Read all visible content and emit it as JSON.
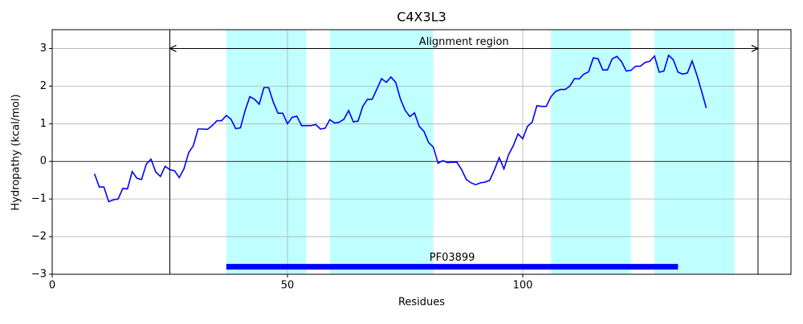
{
  "chart_data": {
    "type": "line",
    "title": "C4X3L3",
    "x_label": "Residues",
    "y_label": "Hydropathy (kcal/mol)",
    "xlim": [
      0,
      157
    ],
    "ylim": [
      -3,
      3.5
    ],
    "xticks": [
      0,
      50,
      100
    ],
    "yticks": [
      {
        "value": -3,
        "label": "−3"
      },
      {
        "value": -2,
        "label": "−2"
      },
      {
        "value": -1,
        "label": "−1"
      },
      0,
      1,
      2,
      3
    ],
    "grid": true,
    "x": [
      9,
      10,
      11,
      12,
      13,
      14,
      15,
      16,
      17,
      18,
      19,
      20,
      21,
      22,
      23,
      24,
      25,
      26,
      27,
      28,
      29,
      30,
      31,
      32,
      33,
      34,
      35,
      36,
      37,
      38,
      39,
      40,
      41,
      42,
      43,
      44,
      45,
      46,
      47,
      48,
      49,
      50,
      51,
      52,
      53,
      54,
      55,
      56,
      57,
      58,
      59,
      60,
      61,
      62,
      63,
      64,
      65,
      66,
      67,
      68,
      69,
      70,
      71,
      72,
      73,
      74,
      75,
      76,
      77,
      78,
      79,
      80,
      81,
      82,
      83,
      84,
      85,
      86,
      87,
      88,
      89,
      90,
      91,
      92,
      93,
      94,
      95,
      96,
      97,
      98,
      99,
      100,
      101,
      102,
      103,
      104,
      105,
      106,
      107,
      108,
      109,
      110,
      111,
      112,
      113,
      114,
      115,
      116,
      117,
      118,
      119,
      120,
      121,
      122,
      123,
      124,
      125,
      126,
      127,
      128,
      129,
      130,
      131,
      132,
      133,
      134,
      135,
      136,
      137,
      138,
      139
    ],
    "series": [
      {
        "color": "#0000ff",
        "values": [
          -0.33,
          -0.68,
          -0.68,
          -1.07,
          -1.02,
          -1.0,
          -0.72,
          -0.73,
          -0.27,
          -0.45,
          -0.48,
          -0.07,
          0.06,
          -0.28,
          -0.4,
          -0.13,
          -0.22,
          -0.25,
          -0.43,
          -0.2,
          0.23,
          0.42,
          0.86,
          0.86,
          0.85,
          0.95,
          1.08,
          1.08,
          1.22,
          1.12,
          0.87,
          0.89,
          1.35,
          1.72,
          1.65,
          1.52,
          1.96,
          1.96,
          1.57,
          1.28,
          1.28,
          1.0,
          1.17,
          1.2,
          0.95,
          0.95,
          0.95,
          0.98,
          0.86,
          0.88,
          1.11,
          1.02,
          1.04,
          1.12,
          1.35,
          1.05,
          1.07,
          1.46,
          1.65,
          1.65,
          1.92,
          2.2,
          2.1,
          2.24,
          2.1,
          1.66,
          1.36,
          1.19,
          1.29,
          0.93,
          0.8,
          0.5,
          0.38,
          -0.05,
          0.02,
          -0.03,
          -0.02,
          -0.02,
          -0.22,
          -0.48,
          -0.57,
          -0.62,
          -0.57,
          -0.55,
          -0.5,
          -0.22,
          0.1,
          -0.2,
          0.18,
          0.42,
          0.73,
          0.6,
          0.93,
          1.04,
          1.48,
          1.46,
          1.46,
          1.72,
          1.86,
          1.91,
          1.91,
          2.0,
          2.2,
          2.19,
          2.32,
          2.38,
          2.75,
          2.73,
          2.43,
          2.43,
          2.72,
          2.79,
          2.65,
          2.4,
          2.42,
          2.53,
          2.53,
          2.63,
          2.66,
          2.8,
          2.37,
          2.4,
          2.82,
          2.7,
          2.37,
          2.32,
          2.35,
          2.67,
          2.3,
          1.87,
          1.42
        ]
      }
    ],
    "shaded_regions": {
      "color": "#bfffff",
      "spans": [
        {
          "start": 37,
          "end": 54
        },
        {
          "start": 59,
          "end": 81
        },
        {
          "start": 106,
          "end": 123
        },
        {
          "start": 128,
          "end": 145
        }
      ]
    },
    "alignment_region": {
      "label": "Alignment region",
      "start": 25,
      "end": 150,
      "y": 3
    },
    "domain": {
      "label": "PF03899",
      "start": 37,
      "end": 133,
      "y": -2.8,
      "color": "#0000ff"
    }
  }
}
